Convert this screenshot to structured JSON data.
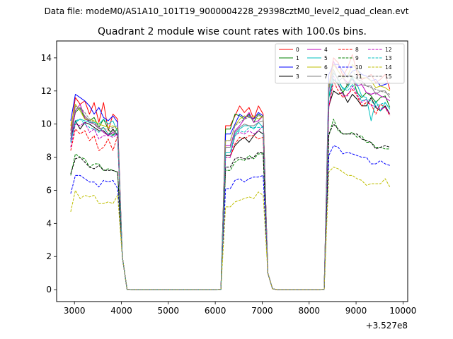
{
  "suptitle": "Data file: modeM0/AS1A10_101T19_9000004228_29398cztM0_level2_quad_clean.evt",
  "chart_data": {
    "type": "line",
    "title": "Quadrant 2 module wise count rates with 100.0s bins.",
    "xlabel": "",
    "ylabel": "",
    "x_offset_label": "+3.527e8",
    "x_offset": 352700000,
    "xlim": [
      2620,
      10100
    ],
    "ylim": [
      -0.72,
      15.02
    ],
    "x_ticks": [
      3000,
      4000,
      5000,
      6000,
      7000,
      8000,
      9000,
      10000
    ],
    "x_tick_labels": [
      "3000",
      "4000",
      "5000",
      "6000",
      "7000",
      "8000",
      "9000",
      "10000"
    ],
    "y_ticks": [
      0,
      2,
      4,
      6,
      8,
      10,
      12,
      14
    ],
    "y_tick_labels": [
      "0",
      "2",
      "4",
      "6",
      "8",
      "10",
      "12",
      "14"
    ],
    "grid": false,
    "legend_placement": "upper right, 4 columns",
    "segments": [
      {
        "x_start": 2920,
        "x_end": 3920
      },
      {
        "x_start": 6220,
        "x_end": 7020
      },
      {
        "x_start": 8420,
        "x_end": 9720
      }
    ],
    "gap_x": [
      4020,
      4120,
      4220,
      4320,
      4420,
      4520,
      4620,
      4720,
      4820,
      4920,
      5020,
      5120,
      5220,
      5320,
      5420,
      5520,
      5620,
      5720,
      5820,
      5920,
      6020,
      6120,
      7120,
      7220,
      7320,
      7420,
      7520,
      7620,
      7720,
      7820,
      7920,
      8020,
      8120,
      8220,
      8320
    ],
    "gap_values": [
      2.0,
      0.02,
      0,
      0,
      0,
      0,
      0,
      0,
      0,
      0,
      0,
      0,
      0,
      0,
      0,
      0,
      0,
      0,
      0,
      0,
      0,
      0.02,
      1.0,
      0.05,
      0,
      0,
      0,
      0,
      0,
      0,
      0,
      0,
      0,
      0,
      0.02
    ],
    "series": [
      {
        "name": "0",
        "color": "#ff0000",
        "dash": "solid",
        "seg_values": [
          [
            9.6,
            11.6,
            11.2,
            11.4,
            10.6,
            11.3,
            10.1,
            11.3,
            9.6,
            10.6,
            10.3
          ],
          [
            9.9,
            9.9,
            10.5,
            11.1,
            10.7,
            11.0,
            10.3,
            11.1,
            10.6,
            11.3,
            11.3
          ],
          [
            12.3,
            14.0,
            13.7,
            12.9,
            13.4,
            14.2,
            13.1,
            12.7,
            12.8,
            13.0,
            12.5,
            12.7,
            13.0,
            12.1,
            12.4,
            12.4
          ]
        ]
      },
      {
        "name": "1",
        "color": "#008000",
        "dash": "solid",
        "seg_values": [
          [
            9.4,
            10.7,
            11.0,
            10.3,
            10.2,
            10.4,
            9.8,
            10.3,
            9.7,
            9.3,
            9.8
          ],
          [
            9.7,
            9.7,
            10.6,
            10.5,
            10.3,
            10.6,
            10.1,
            10.6,
            10.4,
            10.2,
            10.2
          ],
          [
            11.6,
            12.7,
            12.4,
            11.9,
            12.4,
            12.9,
            11.9,
            11.6,
            11.9,
            11.7,
            11.3,
            11.6,
            11.7,
            11.0,
            11.4,
            11.0
          ]
        ]
      },
      {
        "name": "2",
        "color": "#0000ff",
        "dash": "solid",
        "seg_values": [
          [
            10.2,
            11.8,
            11.6,
            11.4,
            11.1,
            10.6,
            11.0,
            10.4,
            10.2,
            10.5,
            10.1
          ],
          [
            9.4,
            9.4,
            10.0,
            10.6,
            10.4,
            10.5,
            10.3,
            10.7,
            10.5,
            10.8,
            10.6
          ],
          [
            13.0,
            13.6,
            13.6,
            13.2,
            12.8,
            13.2,
            13.3,
            13.0,
            12.9,
            12.6,
            12.7,
            12.3,
            12.4,
            12.5,
            12.4,
            11.7
          ]
        ]
      },
      {
        "name": "3",
        "color": "#000000",
        "dash": "solid",
        "seg_values": [
          [
            9.1,
            10.2,
            9.7,
            10.1,
            10.0,
            9.8,
            9.6,
            9.6,
            9.3,
            9.7,
            9.3
          ],
          [
            8.1,
            8.1,
            8.7,
            9.0,
            9.2,
            8.9,
            9.3,
            9.6,
            9.4,
            8.9,
            9.5
          ],
          [
            11.1,
            12.0,
            11.8,
            11.9,
            11.3,
            11.8,
            11.5,
            11.1,
            11.1,
            11.6,
            11.0,
            10.8,
            11.1,
            10.6,
            11.0,
            10.6
          ]
        ]
      },
      {
        "name": "4",
        "color": "#bf00bf",
        "dash": "solid",
        "seg_values": [
          [
            9.0,
            10.8,
            11.2,
            10.4,
            10.1,
            10.0,
            9.8,
            9.5,
            9.3,
            9.5,
            9.3
          ],
          [
            8.7,
            8.7,
            9.6,
            9.9,
            10.3,
            10.7,
            10.1,
            10.2,
            10.5,
            10.3,
            10.8
          ],
          [
            12.0,
            13.8,
            13.2,
            12.8,
            12.5,
            12.7,
            12.3,
            12.4,
            11.9,
            11.8,
            11.9,
            11.7,
            11.6,
            11.4,
            11.3,
            11.4
          ]
        ]
      },
      {
        "name": "5",
        "color": "#00bfbf",
        "dash": "solid",
        "seg_values": [
          [
            8.9,
            10.1,
            10.3,
            10.2,
            10.1,
            10.1,
            10.0,
            10.3,
            10.0,
            10.2,
            9.5
          ],
          [
            8.3,
            8.3,
            9.4,
            9.7,
            9.9,
            9.9,
            9.7,
            10.1,
            9.8,
            9.9,
            9.5
          ],
          [
            11.7,
            13.1,
            12.7,
            12.1,
            12.2,
            12.8,
            12.4,
            11.7,
            11.6,
            10.2,
            11.4,
            10.8,
            11.3,
            10.9,
            11.2,
            10.4
          ]
        ]
      },
      {
        "name": "6",
        "color": "#bfbf00",
        "dash": "solid",
        "seg_values": [
          [
            9.9,
            11.2,
            10.8,
            10.3,
            10.3,
            10.2,
            10.0,
            9.9,
            9.8,
            9.9,
            9.7
          ],
          [
            9.0,
            9.0,
            9.9,
            10.3,
            10.5,
            10.4,
            10.5,
            10.3,
            10.5,
            10.4,
            10.3
          ],
          [
            12.4,
            13.6,
            13.2,
            12.8,
            12.9,
            13.6,
            13.3,
            12.8,
            12.8,
            12.6,
            12.2,
            12.3,
            12.2,
            12.0,
            11.8,
            11.4
          ]
        ]
      },
      {
        "name": "7",
        "color": "#808080",
        "dash": "solid",
        "seg_values": [
          [
            9.3,
            11.1,
            10.9,
            10.5,
            10.2,
            10.0,
            9.7,
            9.8,
            9.4,
            9.6,
            9.4
          ],
          [
            8.6,
            8.6,
            9.5,
            9.8,
            10.0,
            9.9,
            9.9,
            10.1,
            10.2,
            10.3,
            10.0
          ],
          [
            12.1,
            13.3,
            12.6,
            12.8,
            12.3,
            12.9,
            12.7,
            12.6,
            12.3,
            12.3,
            11.8,
            12.0,
            12.0,
            11.6,
            11.6,
            11.4
          ]
        ]
      },
      {
        "name": "8",
        "color": "#ff0000",
        "dash": "dashed",
        "seg_values": [
          [
            8.4,
            9.7,
            9.4,
            9.6,
            9.0,
            9.3,
            8.4,
            8.6,
            9.1,
            8.4,
            9.3
          ],
          [
            8.0,
            8.0,
            8.8,
            9.2,
            9.1,
            9.3,
            9.3,
            9.1,
            9.2,
            8.9,
            9.2
          ],
          [
            11.0,
            12.6,
            12.0,
            11.6,
            11.8,
            12.1,
            11.7,
            11.1,
            11.3,
            11.2,
            10.6,
            11.2,
            11.0,
            10.5,
            10.6,
            10.3
          ]
        ]
      },
      {
        "name": "9",
        "color": "#008000",
        "dash": "dashed",
        "seg_values": [
          [
            6.9,
            8.2,
            8.0,
            7.9,
            7.4,
            7.6,
            7.6,
            7.2,
            7.3,
            7.2,
            7.1
          ],
          [
            7.2,
            7.2,
            7.7,
            7.9,
            7.8,
            8.1,
            7.9,
            8.2,
            8.2,
            8.0,
            8.1
          ],
          [
            9.3,
            10.3,
            9.6,
            9.4,
            9.4,
            9.5,
            9.2,
            9.3,
            8.9,
            8.9,
            8.6,
            8.6,
            8.5,
            8.5,
            8.9,
            8.3
          ]
        ]
      },
      {
        "name": "10",
        "color": "#0000ff",
        "dash": "dashed",
        "seg_values": [
          [
            5.8,
            6.9,
            6.9,
            6.7,
            6.5,
            6.5,
            6.2,
            6.6,
            6.5,
            6.6,
            6.1
          ],
          [
            6.1,
            6.1,
            6.6,
            6.7,
            6.5,
            6.7,
            6.8,
            6.8,
            6.9,
            6.8,
            6.9
          ],
          [
            8.1,
            8.7,
            8.6,
            8.2,
            8.3,
            8.2,
            8.1,
            8.0,
            8.0,
            7.6,
            7.6,
            7.8,
            7.6,
            7.5,
            7.4,
            7.3
          ]
        ]
      },
      {
        "name": "11",
        "color": "#000000",
        "dash": "dashed",
        "seg_values": [
          [
            7.0,
            7.9,
            8.0,
            7.7,
            7.4,
            7.3,
            7.5,
            7.2,
            7.2,
            7.2,
            7.1
          ],
          [
            7.4,
            7.4,
            7.9,
            8.0,
            7.9,
            7.9,
            8.0,
            8.3,
            8.3,
            8.5,
            8.6
          ],
          [
            9.4,
            10.0,
            9.7,
            9.4,
            9.4,
            9.4,
            9.4,
            9.1,
            9.0,
            8.9,
            8.5,
            8.6,
            8.7,
            8.6,
            8.6,
            8.3
          ]
        ]
      },
      {
        "name": "12",
        "color": "#bf00bf",
        "dash": "dashed",
        "seg_values": [
          [
            8.6,
            10.0,
            9.9,
            10.1,
            9.5,
            9.7,
            9.1,
            9.3,
            9.3,
            9.2,
            9.4
          ],
          [
            8.0,
            8.0,
            9.3,
            9.5,
            9.4,
            9.6,
            9.4,
            9.6,
            9.9,
            9.6,
            10.0
          ],
          [
            11.0,
            12.9,
            12.4,
            11.7,
            11.7,
            12.3,
            11.8,
            11.3,
            11.5,
            11.1,
            11.1,
            10.9,
            11.0,
            10.6,
            10.8,
            10.2
          ]
        ]
      },
      {
        "name": "13",
        "color": "#00bfbf",
        "dash": "dashed",
        "seg_values": [
          [
            8.9,
            10.2,
            10.3,
            10.0,
            9.8,
            9.7,
            9.5,
            9.8,
            9.4,
            9.3,
            9.5
          ],
          [
            8.3,
            8.3,
            9.3,
            9.6,
            9.5,
            9.8,
            9.8,
            9.8,
            9.8,
            10.0,
            9.8
          ],
          [
            11.6,
            12.7,
            12.5,
            12.2,
            12.0,
            12.4,
            12.0,
            11.4,
            11.5,
            11.4,
            11.1,
            11.2,
            11.3,
            10.9,
            10.7,
            10.8
          ]
        ]
      },
      {
        "name": "14",
        "color": "#bfbf00",
        "dash": "dashed",
        "seg_values": [
          [
            4.7,
            6.0,
            5.5,
            5.7,
            5.6,
            5.7,
            5.2,
            5.2,
            5.3,
            5.2,
            5.7
          ],
          [
            5.0,
            5.0,
            5.3,
            5.4,
            5.5,
            5.6,
            5.5,
            5.9,
            5.7,
            5.7,
            5.5
          ],
          [
            7.1,
            7.4,
            7.3,
            7.1,
            6.9,
            6.9,
            6.7,
            6.6,
            6.3,
            6.4,
            6.4,
            6.4,
            6.7,
            6.2,
            6.2,
            6.0
          ]
        ]
      },
      {
        "name": "15",
        "color": "#808080",
        "dash": "dashed",
        "seg_values": [
          [
            9.6,
            10.9,
            11.0,
            10.7,
            10.3,
            10.1,
            9.8,
            9.7,
            9.7,
            9.8,
            9.9
          ],
          [
            9.0,
            9.0,
            9.9,
            10.1,
            10.3,
            10.4,
            10.3,
            10.5,
            10.5,
            10.5,
            10.4
          ],
          [
            12.3,
            13.1,
            12.8,
            12.9,
            12.8,
            13.2,
            12.8,
            12.4,
            12.3,
            12.2,
            12.1,
            12.0,
            11.9,
            11.8,
            11.9,
            11.5
          ]
        ]
      }
    ]
  }
}
